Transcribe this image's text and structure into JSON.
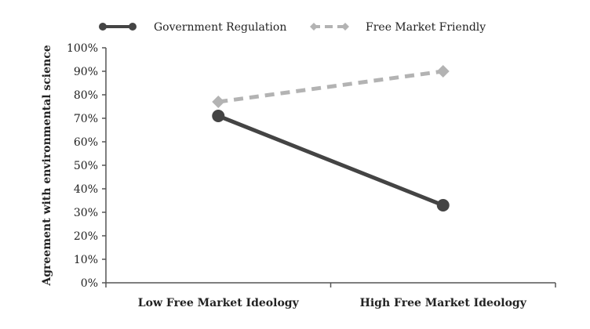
{
  "chart_data": {
    "type": "line",
    "categories": [
      "Low Free Market Ideology",
      "High Free Market Ideology"
    ],
    "ylabel": "Agreement with environmental science",
    "xlabel": "",
    "title": "",
    "ylim": [
      0,
      100
    ],
    "yticks": [
      "0%",
      "10%",
      "20%",
      "30%",
      "40%",
      "50%",
      "60%",
      "70%",
      "80%",
      "90%",
      "100%"
    ],
    "legend_position": "top",
    "grid": false,
    "series": [
      {
        "name": "Government Regulation",
        "values": [
          71,
          33
        ],
        "color": "#444444",
        "style": "solid",
        "marker": "circle"
      },
      {
        "name": "Free Market  Friendly",
        "values": [
          77,
          90
        ],
        "color": "#b3b3b3",
        "style": "dashed",
        "marker": "diamond"
      }
    ]
  }
}
